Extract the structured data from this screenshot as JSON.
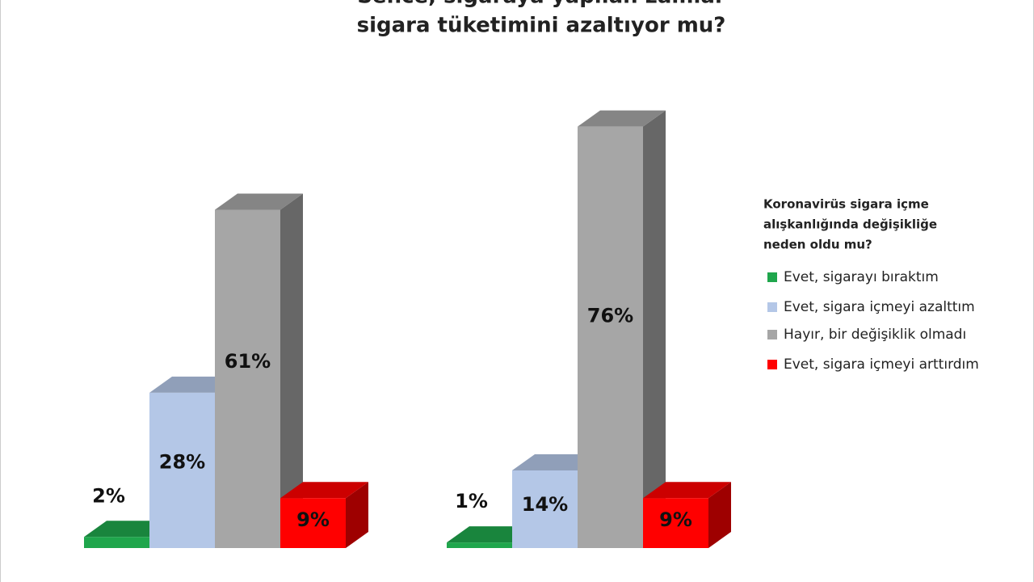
{
  "chart_data": {
    "type": "bar3d",
    "title_lines": [
      "Sence, sigaraya yapılan zamlar",
      "sigara tüketimini azaltıyor mu?"
    ],
    "legend_title": [
      "Koronavirüs sigara içme",
      "alışkanlığında değişikliğe",
      "neden oldu mu?"
    ],
    "categories": [
      null,
      null
    ],
    "series": [
      {
        "name": "Evet, sigarayı bıraktım",
        "color": "#1fa64c",
        "values": [
          2,
          1
        ],
        "value_labels": [
          "2%",
          "1%"
        ]
      },
      {
        "name": "Evet, sigara içmeyi azalttım",
        "color": "#b4c7e7",
        "values": [
          28,
          14
        ],
        "value_labels": [
          "28%",
          "14%"
        ]
      },
      {
        "name": "Hayır, bir değişiklik olmadı",
        "color": "#a6a6a6",
        "values": [
          61,
          76
        ],
        "value_labels": [
          "61%",
          "76%"
        ]
      },
      {
        "name": "Evet, sigara içmeyi arttırdım",
        "color": "#ff0000",
        "values": [
          9,
          9
        ],
        "value_labels": [
          "9%",
          "9%"
        ]
      }
    ]
  }
}
